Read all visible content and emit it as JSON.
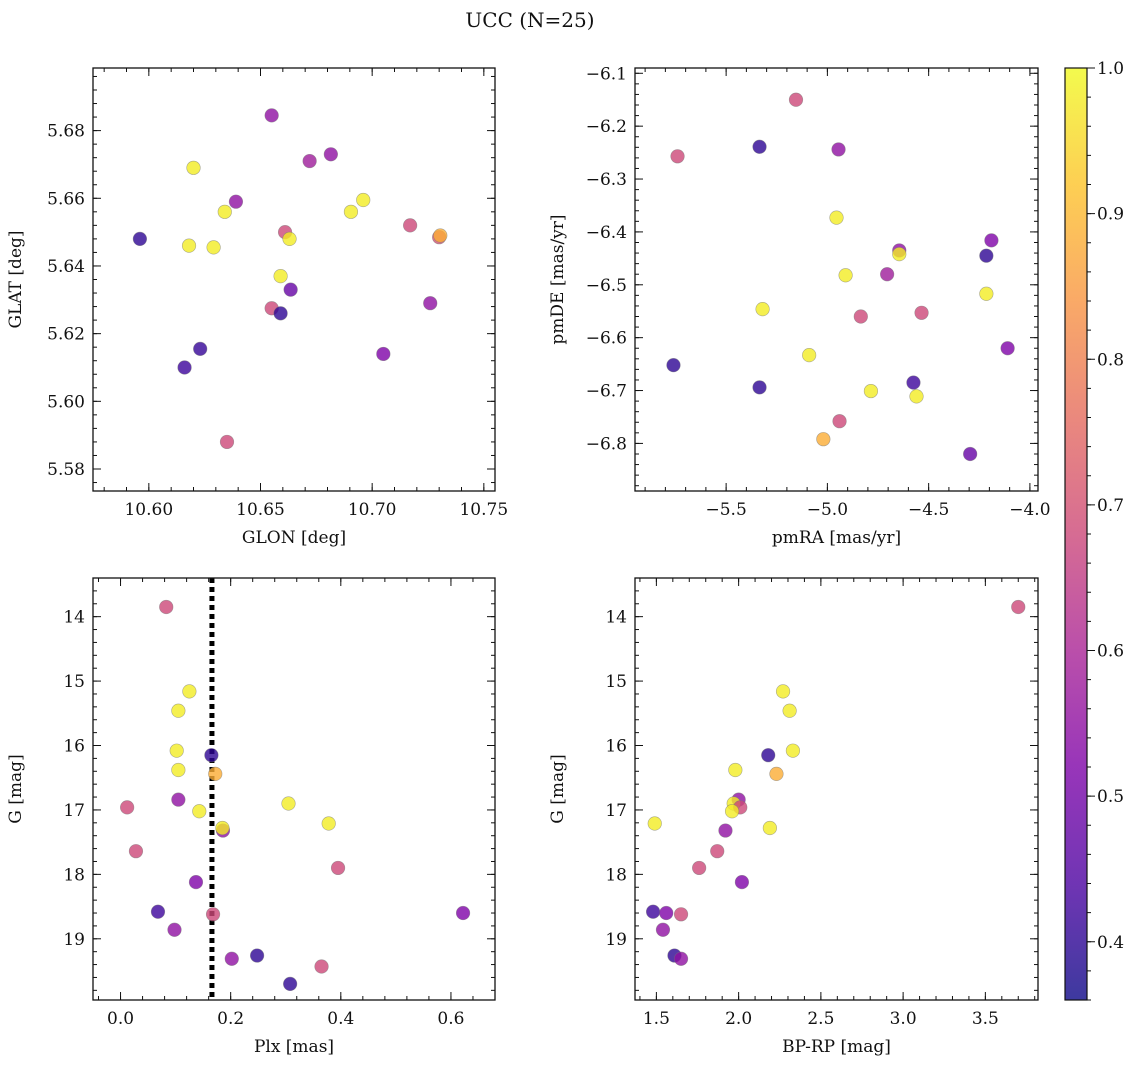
{
  "figure": {
    "title": "UCC (N=25)"
  },
  "colorbar": {
    "colormap": "plasma",
    "range": [
      0.36,
      1.0
    ],
    "ticks": [
      0.4,
      0.5,
      0.6,
      0.7,
      0.8,
      0.9,
      1.0
    ],
    "tick_labels": [
      "0.4",
      "0.5",
      "0.6",
      "0.7",
      "0.8",
      "0.9",
      "1.0"
    ]
  },
  "chart_data": [
    {
      "type": "scatter",
      "id": "pos",
      "xlabel": "GLON [deg]",
      "ylabel": "GLAT [deg]",
      "xlim": [
        10.575,
        10.755
      ],
      "ylim": [
        5.5735,
        5.6985
      ],
      "yinvert": false,
      "xticks": [
        10.6,
        10.65,
        10.7,
        10.75
      ],
      "xtick_labels": [
        "10.60",
        "10.65",
        "10.70",
        "10.75"
      ],
      "yticks": [
        5.58,
        5.6,
        5.62,
        5.64,
        5.66,
        5.68
      ],
      "ytick_labels": [
        "5.58",
        "5.60",
        "5.62",
        "5.64",
        "5.66",
        "5.68"
      ],
      "points": [
        {
          "x": 10.596,
          "y": 5.648,
          "c": 0.4
        },
        {
          "x": 10.616,
          "y": 5.61,
          "c": 0.42
        },
        {
          "x": 10.623,
          "y": 5.6155,
          "c": 0.41
        },
        {
          "x": 10.618,
          "y": 5.646,
          "c": 0.98
        },
        {
          "x": 10.62,
          "y": 5.669,
          "c": 0.98
        },
        {
          "x": 10.629,
          "y": 5.6455,
          "c": 0.98
        },
        {
          "x": 10.634,
          "y": 5.656,
          "c": 0.98
        },
        {
          "x": 10.635,
          "y": 5.588,
          "c": 0.68
        },
        {
          "x": 10.639,
          "y": 5.659,
          "c": 0.55
        },
        {
          "x": 10.655,
          "y": 5.6845,
          "c": 0.55
        },
        {
          "x": 10.655,
          "y": 5.6275,
          "c": 0.68
        },
        {
          "x": 10.659,
          "y": 5.626,
          "c": 0.4
        },
        {
          "x": 10.659,
          "y": 5.637,
          "c": 0.98
        },
        {
          "x": 10.661,
          "y": 5.65,
          "c": 0.68
        },
        {
          "x": 10.663,
          "y": 5.648,
          "c": 0.98
        },
        {
          "x": 10.6635,
          "y": 5.633,
          "c": 0.48
        },
        {
          "x": 10.672,
          "y": 5.671,
          "c": 0.58
        },
        {
          "x": 10.6815,
          "y": 5.673,
          "c": 0.55
        },
        {
          "x": 10.6905,
          "y": 5.656,
          "c": 0.98
        },
        {
          "x": 10.696,
          "y": 5.6595,
          "c": 0.98
        },
        {
          "x": 10.705,
          "y": 5.614,
          "c": 0.52
        },
        {
          "x": 10.717,
          "y": 5.652,
          "c": 0.68
        },
        {
          "x": 10.726,
          "y": 5.629,
          "c": 0.55
        },
        {
          "x": 10.73,
          "y": 5.6485,
          "c": 0.7
        },
        {
          "x": 10.7305,
          "y": 5.649,
          "c": 0.88
        }
      ]
    },
    {
      "type": "scatter",
      "id": "pm",
      "xlabel": "pmRA [mas/yr]",
      "ylabel": "pmDE [mas/yr]",
      "xlim": [
        -5.95,
        -3.96
      ],
      "ylim": [
        -6.89,
        -6.09
      ],
      "yinvert": false,
      "xticks": [
        -5.5,
        -5.0,
        -4.5,
        -4.0
      ],
      "xtick_labels": [
        "−5.5",
        "−5.0",
        "−4.5",
        "−4.0"
      ],
      "yticks": [
        -6.8,
        -6.7,
        -6.6,
        -6.5,
        -6.4,
        -6.3,
        -6.2,
        -6.1
      ],
      "ytick_labels": [
        "−6.8",
        "−6.7",
        "−6.6",
        "−6.5",
        "−6.4",
        "−6.3",
        "−6.2",
        "−6.1"
      ],
      "points": [
        {
          "x": -5.74,
          "y": -6.257,
          "c": 0.68
        },
        {
          "x": -5.76,
          "y": -6.652,
          "c": 0.4
        },
        {
          "x": -5.335,
          "y": -6.239,
          "c": 0.4
        },
        {
          "x": -5.335,
          "y": -6.694,
          "c": 0.4
        },
        {
          "x": -5.32,
          "y": -6.546,
          "c": 0.98
        },
        {
          "x": -5.155,
          "y": -6.15,
          "c": 0.68
        },
        {
          "x": -5.09,
          "y": -6.633,
          "c": 0.98
        },
        {
          "x": -5.02,
          "y": -6.792,
          "c": 0.88
        },
        {
          "x": -4.955,
          "y": -6.373,
          "c": 0.98
        },
        {
          "x": -4.945,
          "y": -6.244,
          "c": 0.55
        },
        {
          "x": -4.94,
          "y": -6.758,
          "c": 0.68
        },
        {
          "x": -4.91,
          "y": -6.482,
          "c": 0.98
        },
        {
          "x": -4.835,
          "y": -6.56,
          "c": 0.68
        },
        {
          "x": -4.785,
          "y": -6.701,
          "c": 0.98
        },
        {
          "x": -4.705,
          "y": -6.48,
          "c": 0.58
        },
        {
          "x": -4.645,
          "y": -6.435,
          "c": 0.55
        },
        {
          "x": -4.645,
          "y": -6.442,
          "c": 0.98
        },
        {
          "x": -4.575,
          "y": -6.685,
          "c": 0.42
        },
        {
          "x": -4.56,
          "y": -6.711,
          "c": 0.98
        },
        {
          "x": -4.535,
          "y": -6.553,
          "c": 0.68
        },
        {
          "x": -4.295,
          "y": -6.82,
          "c": 0.48
        },
        {
          "x": -4.215,
          "y": -6.445,
          "c": 0.4
        },
        {
          "x": -4.215,
          "y": -6.517,
          "c": 0.98
        },
        {
          "x": -4.19,
          "y": -6.416,
          "c": 0.52
        },
        {
          "x": -4.11,
          "y": -6.62,
          "c": 0.52
        }
      ]
    },
    {
      "type": "scatter",
      "id": "plx",
      "xlabel": "Plx [mas]",
      "ylabel": "G [mag]",
      "xlim": [
        -0.05,
        0.68
      ],
      "ylim": [
        13.4,
        19.95
      ],
      "yinvert": true,
      "vline": 0.166,
      "xticks": [
        0.0,
        0.2,
        0.4,
        0.6
      ],
      "xtick_labels": [
        "0.0",
        "0.2",
        "0.4",
        "0.6"
      ],
      "yticks": [
        14,
        15,
        16,
        17,
        18,
        19
      ],
      "ytick_labels": [
        "14",
        "15",
        "16",
        "17",
        "18",
        "19"
      ],
      "points": [
        {
          "x": 0.083,
          "y": 13.85,
          "c": 0.68
        },
        {
          "x": 0.125,
          "y": 15.16,
          "c": 0.98
        },
        {
          "x": 0.105,
          "y": 15.46,
          "c": 0.98
        },
        {
          "x": 0.102,
          "y": 16.08,
          "c": 0.98
        },
        {
          "x": 0.105,
          "y": 16.38,
          "c": 0.98
        },
        {
          "x": 0.165,
          "y": 16.15,
          "c": 0.4
        },
        {
          "x": 0.172,
          "y": 16.44,
          "c": 0.88
        },
        {
          "x": 0.105,
          "y": 16.84,
          "c": 0.55
        },
        {
          "x": 0.012,
          "y": 16.96,
          "c": 0.68
        },
        {
          "x": 0.143,
          "y": 17.02,
          "c": 0.98
        },
        {
          "x": 0.186,
          "y": 17.32,
          "c": 0.55
        },
        {
          "x": 0.185,
          "y": 17.28,
          "c": 0.98
        },
        {
          "x": 0.305,
          "y": 16.9,
          "c": 0.98
        },
        {
          "x": 0.378,
          "y": 17.21,
          "c": 0.98
        },
        {
          "x": 0.028,
          "y": 17.64,
          "c": 0.68
        },
        {
          "x": 0.395,
          "y": 17.9,
          "c": 0.68
        },
        {
          "x": 0.137,
          "y": 18.12,
          "c": 0.52
        },
        {
          "x": 0.068,
          "y": 18.58,
          "c": 0.42
        },
        {
          "x": 0.168,
          "y": 18.62,
          "c": 0.68
        },
        {
          "x": 0.098,
          "y": 18.86,
          "c": 0.55
        },
        {
          "x": 0.622,
          "y": 18.6,
          "c": 0.52
        },
        {
          "x": 0.202,
          "y": 19.31,
          "c": 0.55
        },
        {
          "x": 0.248,
          "y": 19.26,
          "c": 0.4
        },
        {
          "x": 0.365,
          "y": 19.43,
          "c": 0.68
        },
        {
          "x": 0.308,
          "y": 19.7,
          "c": 0.4
        }
      ]
    },
    {
      "type": "scatter",
      "id": "cmd",
      "xlabel": "BP-RP [mag]",
      "ylabel": "G [mag]",
      "xlim": [
        1.37,
        3.82
      ],
      "ylim": [
        13.4,
        19.95
      ],
      "yinvert": true,
      "xticks": [
        1.5,
        2.0,
        2.5,
        3.0,
        3.5
      ],
      "xtick_labels": [
        "1.5",
        "2.0",
        "2.5",
        "3.0",
        "3.5"
      ],
      "yticks": [
        14,
        15,
        16,
        17,
        18,
        19
      ],
      "ytick_labels": [
        "14",
        "15",
        "16",
        "17",
        "18",
        "19"
      ],
      "points": [
        {
          "x": 3.7,
          "y": 13.85,
          "c": 0.68
        },
        {
          "x": 2.27,
          "y": 15.16,
          "c": 0.98
        },
        {
          "x": 2.31,
          "y": 15.46,
          "c": 0.98
        },
        {
          "x": 2.33,
          "y": 16.08,
          "c": 0.98
        },
        {
          "x": 2.18,
          "y": 16.15,
          "c": 0.4
        },
        {
          "x": 1.98,
          "y": 16.38,
          "c": 0.98
        },
        {
          "x": 2.23,
          "y": 16.44,
          "c": 0.88
        },
        {
          "x": 2.0,
          "y": 16.84,
          "c": 0.55
        },
        {
          "x": 1.97,
          "y": 16.9,
          "c": 0.98
        },
        {
          "x": 2.01,
          "y": 16.96,
          "c": 0.68
        },
        {
          "x": 1.96,
          "y": 17.02,
          "c": 0.98
        },
        {
          "x": 1.49,
          "y": 17.21,
          "c": 0.98
        },
        {
          "x": 2.19,
          "y": 17.28,
          "c": 0.98
        },
        {
          "x": 1.92,
          "y": 17.32,
          "c": 0.55
        },
        {
          "x": 1.87,
          "y": 17.64,
          "c": 0.68
        },
        {
          "x": 1.76,
          "y": 17.9,
          "c": 0.68
        },
        {
          "x": 2.02,
          "y": 18.12,
          "c": 0.52
        },
        {
          "x": 1.48,
          "y": 18.58,
          "c": 0.42
        },
        {
          "x": 1.56,
          "y": 18.6,
          "c": 0.52
        },
        {
          "x": 1.65,
          "y": 18.62,
          "c": 0.68
        },
        {
          "x": 1.54,
          "y": 18.86,
          "c": 0.55
        },
        {
          "x": 1.61,
          "y": 19.26,
          "c": 0.4
        },
        {
          "x": 1.65,
          "y": 19.31,
          "c": 0.55
        }
      ]
    }
  ]
}
